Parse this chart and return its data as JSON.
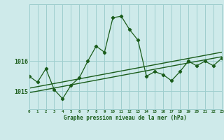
{
  "title": "Graphe pression niveau de la mer (hPa)",
  "bg_color": "#ceeaea",
  "grid_color": "#9ecece",
  "line_color": "#1a5c1a",
  "x_min": 0,
  "x_max": 23,
  "y_min": 1014.4,
  "y_max": 1017.9,
  "yticks": [
    1015,
    1016
  ],
  "main_x": [
    0,
    1,
    2,
    3,
    4,
    5,
    6,
    7,
    8,
    9,
    10,
    11,
    12,
    13,
    14,
    15,
    16,
    17,
    18,
    19,
    20,
    21,
    22,
    23
  ],
  "main_y": [
    1015.5,
    1015.3,
    1015.75,
    1015.05,
    1014.75,
    1015.2,
    1015.45,
    1016.0,
    1016.5,
    1016.3,
    1017.45,
    1017.5,
    1017.05,
    1016.7,
    1015.5,
    1015.65,
    1015.55,
    1015.35,
    1015.65,
    1016.0,
    1015.85,
    1016.0,
    1015.85,
    1016.1
  ],
  "line1_x": [
    0,
    23
  ],
  "line1_y": [
    1014.95,
    1016.15
  ],
  "line2_x": [
    0,
    23
  ],
  "line2_y": [
    1015.1,
    1016.3
  ],
  "xtick_labels": [
    "0",
    "1",
    "2",
    "3",
    "4",
    "5",
    "6",
    "7",
    "8",
    "9",
    "10",
    "11",
    "12",
    "13",
    "14",
    "15",
    "16",
    "17",
    "18",
    "19",
    "20",
    "21",
    "22",
    "23"
  ]
}
